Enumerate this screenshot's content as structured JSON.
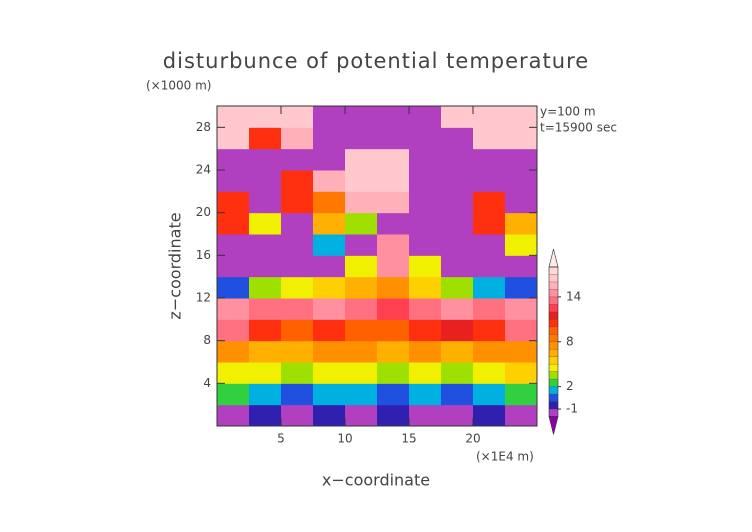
{
  "chart_data": {
    "type": "filled-contour",
    "title": "disturbunce of potential temperature",
    "x_label": "x−coordinate",
    "y_label": "z−coordinate",
    "x_unit": "(×1E4 m)",
    "y_unit": "(×1000 m)",
    "annotations": [
      "y=100 m",
      "t=15900 sec"
    ],
    "xlim": [
      0,
      25
    ],
    "ylim": [
      0,
      30
    ],
    "xticks": [
      5,
      10,
      15,
      20
    ],
    "yticks": [
      4,
      8,
      12,
      16,
      20,
      24,
      28
    ],
    "x_edges": [
      0,
      2.5,
      5,
      7.5,
      10,
      12.5,
      15,
      17.5,
      20,
      22.5,
      25
    ],
    "y_edges": [
      0,
      2,
      4,
      6,
      8,
      10,
      12,
      14,
      16,
      18,
      20,
      22,
      24,
      26,
      28,
      30
    ],
    "values": [
      [
        -1.5,
        -0.5,
        -1.5,
        -0.5,
        -1.5,
        -0.5,
        -1.5,
        -1.5,
        -0.5,
        -1.5
      ],
      [
        2.5,
        1.5,
        0.5,
        1.5,
        1.5,
        0.5,
        1.5,
        0.5,
        1.5,
        2.5
      ],
      [
        4.5,
        4.5,
        3.5,
        4.5,
        4.5,
        3.5,
        4.5,
        3.5,
        4.5,
        5.5
      ],
      [
        7.5,
        6.5,
        6.5,
        7.5,
        7.5,
        6.5,
        7.5,
        6.5,
        7.5,
        7.5
      ],
      [
        13.5,
        10.5,
        9.5,
        10.5,
        9.5,
        9.5,
        10.5,
        11.5,
        10.5,
        13.5
      ],
      [
        14.5,
        13.5,
        13.5,
        14.5,
        13.5,
        12.5,
        13.5,
        14.5,
        13.5,
        14.5
      ],
      [
        0.5,
        3.5,
        4.5,
        5.5,
        6.5,
        7.5,
        5.5,
        3.5,
        1.5,
        0.5
      ],
      [
        -1.5,
        -1.5,
        -1.5,
        -1.5,
        4.5,
        14.5,
        4.5,
        -1.5,
        -1.5,
        -1.5
      ],
      [
        -1.5,
        -1.5,
        -1.5,
        1.5,
        -1.5,
        14.5,
        -1.5,
        -1.5,
        -1.5,
        4.5
      ],
      [
        10.5,
        4.5,
        -1.5,
        6.5,
        3.5,
        -1.5,
        -1.5,
        -1.5,
        10.5,
        6.5
      ],
      [
        10.5,
        -1.5,
        10.5,
        8.5,
        15.5,
        15.5,
        -1.5,
        -1.5,
        10.5,
        -1.5
      ],
      [
        -1.5,
        -1.5,
        10.5,
        15.5,
        16.5,
        16.5,
        -1.5,
        -1.5,
        -1.5,
        -1.5
      ],
      [
        -1.5,
        -1.5,
        -1.5,
        -1.5,
        16.5,
        16.5,
        -1.5,
        -1.5,
        -1.5,
        -1.5
      ],
      [
        16.5,
        10.5,
        15.5,
        -1.5,
        -1.5,
        -1.5,
        -1.5,
        -1.5,
        16.5,
        16.5
      ],
      [
        16.5,
        16.5,
        16.5,
        -1.5,
        -1.5,
        -1.5,
        -1.5,
        16.5,
        16.5,
        16.5
      ]
    ],
    "levels": [
      -2,
      -1,
      0,
      1,
      2,
      3,
      4,
      5,
      6,
      7,
      8,
      9,
      10,
      11,
      12,
      13,
      14,
      15,
      16,
      17,
      18
    ],
    "colors": [
      "#8c00a8",
      "#b040c0",
      "#3020b0",
      "#2050e0",
      "#00b0e0",
      "#30d040",
      "#a0e000",
      "#f0f000",
      "#ffd000",
      "#ffb000",
      "#ff9000",
      "#ff7800",
      "#ff6000",
      "#ff3010",
      "#e82020",
      "#ff4050",
      "#ff7080",
      "#ff90a0",
      "#ffb0b8",
      "#ffc8cc",
      "#ffd8d8",
      "#ffeaea"
    ],
    "colorbar_ticks": [
      -1,
      2,
      8,
      14
    ]
  }
}
